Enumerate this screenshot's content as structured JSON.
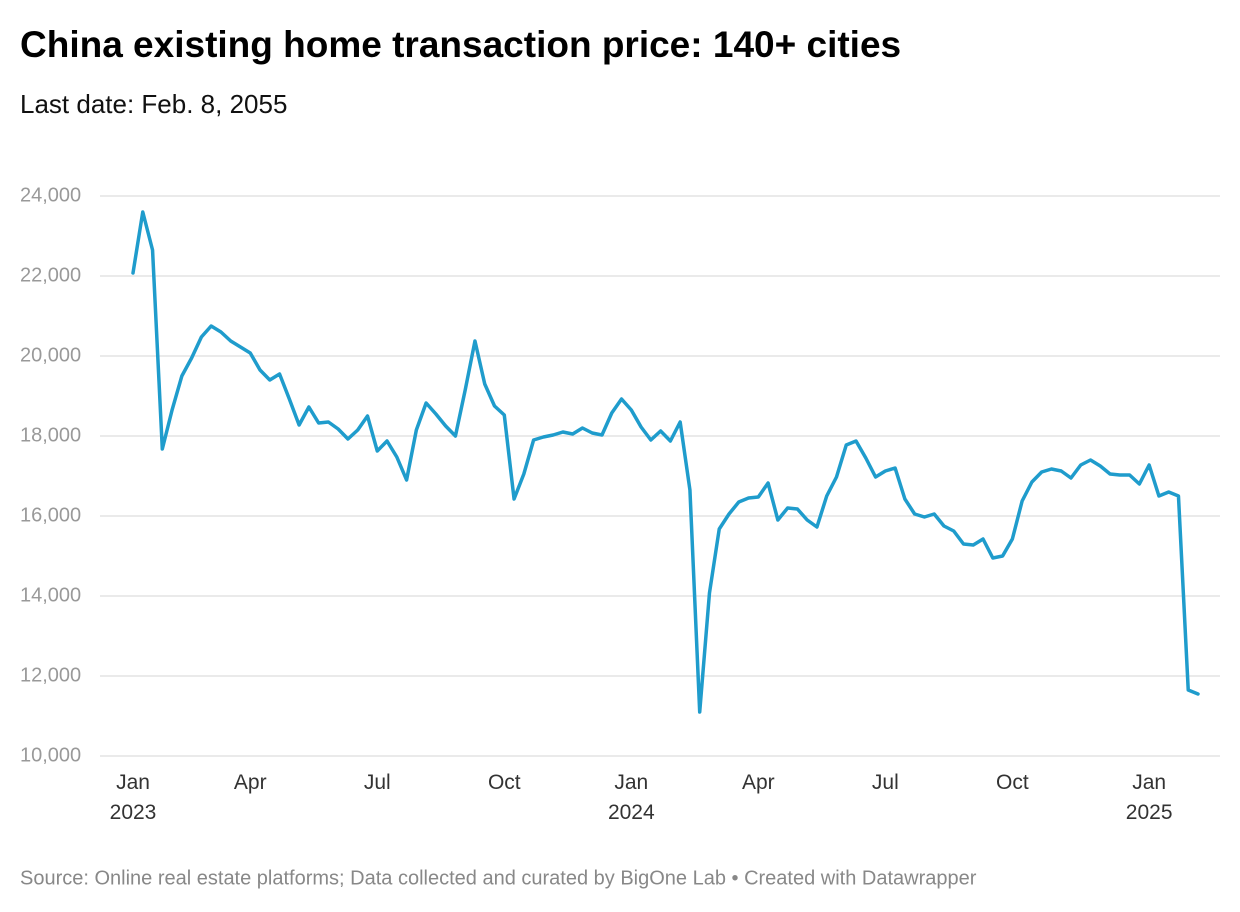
{
  "chart_data": {
    "type": "line",
    "title": "China existing home transaction price: 140+ cities",
    "subtitle": "Last date: Feb. 8, 2055",
    "source": "Source: Online real estate platforms; Data collected and curated by BigOne Lab • Created with Datawrapper",
    "categories": [
      "Jan\n2023",
      null,
      null,
      null,
      null,
      null,
      null,
      null,
      null,
      null,
      null,
      null,
      "Apr",
      null,
      null,
      null,
      null,
      null,
      null,
      null,
      null,
      null,
      null,
      null,
      null,
      "Jul",
      null,
      null,
      null,
      null,
      null,
      null,
      null,
      null,
      null,
      null,
      null,
      null,
      "Oct",
      null,
      null,
      null,
      null,
      null,
      null,
      null,
      null,
      null,
      null,
      null,
      null,
      "Jan\n2024",
      null,
      null,
      null,
      null,
      null,
      null,
      null,
      null,
      null,
      null,
      null,
      null,
      "Apr",
      null,
      null,
      null,
      null,
      null,
      null,
      null,
      null,
      null,
      null,
      null,
      null,
      "Jul",
      null,
      null,
      null,
      null,
      null,
      null,
      null,
      null,
      null,
      null,
      null,
      null,
      "Oct",
      null,
      null,
      null,
      null,
      null,
      null,
      null,
      null,
      null,
      null,
      null,
      null,
      null,
      "Jan\n2025",
      null,
      null,
      null,
      null,
      null
    ],
    "series": [
      {
        "name": "Price",
        "color": "#1f9ccc",
        "values": [
          22075,
          23600,
          22650,
          17675,
          18650,
          19500,
          19950,
          20475,
          20750,
          20600,
          20375,
          20225,
          20075,
          19650,
          19400,
          19550,
          18925,
          18275,
          18725,
          18325,
          18350,
          18175,
          17925,
          18150,
          18500,
          17625,
          17875,
          17475,
          16900,
          18150,
          18825,
          18550,
          18250,
          18000,
          19150,
          20375,
          19300,
          18750,
          18525,
          16425,
          17050,
          17900,
          17975,
          18025,
          18100,
          18050,
          18200,
          18075,
          18025,
          18575,
          18925,
          18650,
          18225,
          17900,
          18125,
          17875,
          18350,
          16650,
          11100,
          14075,
          15675,
          16050,
          16350,
          16450,
          16475,
          16825,
          15900,
          16200,
          16175,
          15900,
          15725,
          16500,
          16975,
          17775,
          17875,
          17450,
          16975,
          17125,
          17200,
          16425,
          16050,
          15975,
          16050,
          15750,
          15625,
          15300,
          15275,
          15425,
          14950,
          15000,
          15425,
          16375,
          16850,
          17100,
          17175,
          17125,
          16950,
          17275,
          17400,
          17250,
          17050,
          17025,
          17025,
          16800,
          17275,
          16500,
          16600,
          16500,
          11650,
          11550
        ]
      }
    ],
    "ylim": [
      10000,
      24000
    ],
    "yticks": [
      {
        "value": 10000,
        "label": "10,000"
      },
      {
        "value": 12000,
        "label": "12,000"
      },
      {
        "value": 14000,
        "label": "14,000"
      },
      {
        "value": 16000,
        "label": "16,000"
      },
      {
        "value": 18000,
        "label": "18,000"
      },
      {
        "value": 20000,
        "label": "20,000"
      },
      {
        "value": 22000,
        "label": "22,000"
      },
      {
        "value": 24000,
        "label": "24,000"
      }
    ],
    "grid": true
  }
}
